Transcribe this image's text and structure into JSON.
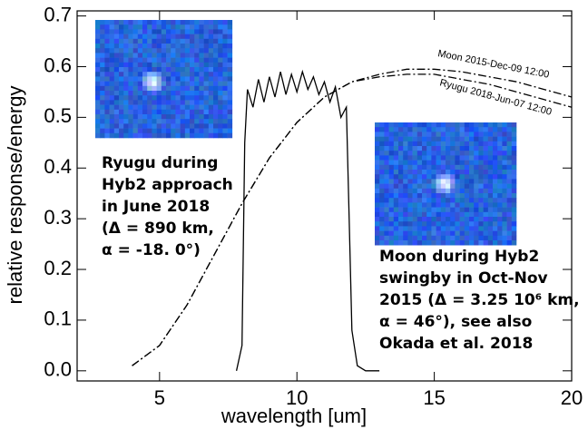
{
  "chart_data": {
    "type": "line",
    "x_label": "wavelength [um]",
    "y_label": "relative response/energy",
    "xlim": [
      2,
      20
    ],
    "ylim": [
      -0.02,
      0.71
    ],
    "xticks": [
      5,
      10,
      15,
      20
    ],
    "yticks": [
      {
        "value": 0,
        "label": "0.0"
      },
      0.1,
      0.2,
      0.3,
      0.4,
      0.5,
      0.6,
      0.7
    ],
    "series": [
      {
        "color": "#000000",
        "style": "solid",
        "x": [
          7.8,
          8.0,
          8.1,
          8.2,
          8.4,
          8.6,
          8.8,
          9.0,
          9.2,
          9.4,
          9.6,
          9.8,
          10.0,
          10.2,
          10.4,
          10.6,
          10.8,
          11.0,
          11.2,
          11.4,
          11.6,
          11.8,
          11.9,
          12.0,
          12.2,
          12.5,
          13.0
        ],
        "values": [
          0,
          0.05,
          0.45,
          0.555,
          0.52,
          0.575,
          0.53,
          0.58,
          0.54,
          0.59,
          0.545,
          0.585,
          0.55,
          0.59,
          0.555,
          0.58,
          0.545,
          0.57,
          0.53,
          0.56,
          0.5,
          0.52,
          0.3,
          0.08,
          0.01,
          0,
          0
        ]
      },
      {
        "name": "Moon 2015-Dec-09 12:00",
        "color": "#000000",
        "style": "dashdot",
        "x": [
          4,
          5,
          6,
          7,
          8,
          9,
          10,
          11,
          12,
          13,
          14,
          15,
          16,
          17,
          18,
          19,
          20
        ],
        "values": [
          0.01,
          0.05,
          0.13,
          0.23,
          0.33,
          0.42,
          0.49,
          0.54,
          0.57,
          0.585,
          0.595,
          0.595,
          0.59,
          0.58,
          0.57,
          0.555,
          0.54
        ]
      },
      {
        "name": "Ryugu 2018-Jun-07 12:00",
        "color": "#000000",
        "style": "dashdot",
        "x": [
          4,
          5,
          6,
          7,
          8,
          9,
          10,
          11,
          12,
          13,
          14,
          15,
          16,
          17,
          18,
          19,
          20
        ],
        "values": [
          0.01,
          0.05,
          0.13,
          0.23,
          0.33,
          0.42,
          0.49,
          0.54,
          0.57,
          0.58,
          0.585,
          0.585,
          0.575,
          0.565,
          0.55,
          0.535,
          0.52
        ]
      }
    ],
    "annotations": [
      [
        "Ryugu during",
        "Hyb2 approach",
        "in June 2018",
        "(Δ = 890 km,",
        "α = -18. 0°)"
      ],
      [
        "Moon during Hyb2",
        "swingby in Oct-Nov",
        "2015 (Δ = 3.25 10⁶ km,",
        "α = 46°), see also",
        "Okada et al. 2018"
      ]
    ]
  }
}
